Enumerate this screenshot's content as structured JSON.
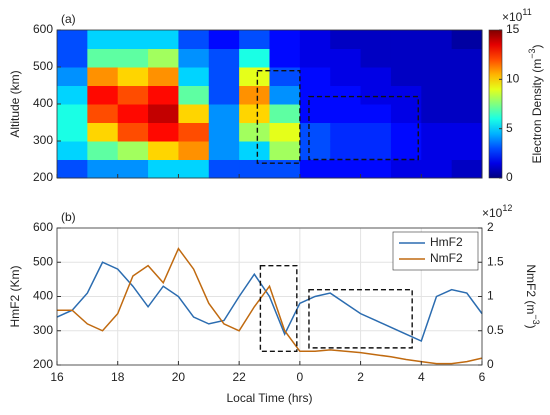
{
  "chart_data": [
    {
      "type": "heatmap",
      "panel_label": "(a)",
      "ylabel": "Altitude (km)",
      "colorbar_label": [
        "Electron Density (m",
        "−3",
        ")"
      ],
      "colorbar_multiplier": [
        "×10",
        "11"
      ],
      "x_edges": [
        16,
        17,
        18,
        19,
        20,
        21,
        22,
        23,
        24,
        25,
        26,
        27,
        28,
        29,
        30
      ],
      "y_edges": [
        200,
        250,
        300,
        350,
        400,
        450,
        500,
        550,
        600
      ],
      "z": [
        [
          3,
          5,
          6,
          6,
          5,
          4,
          3,
          3
        ],
        [
          4,
          7,
          10,
          12,
          13,
          11,
          7,
          5
        ],
        [
          4,
          8,
          12,
          13,
          12,
          10,
          7,
          5
        ],
        [
          5,
          10,
          13,
          14,
          13,
          11,
          8,
          5
        ],
        [
          5,
          11,
          12,
          10,
          7,
          5,
          4,
          3
        ],
        [
          3,
          4,
          4,
          4,
          3,
          3,
          3,
          2
        ],
        [
          3,
          5,
          8,
          10,
          11,
          9,
          6,
          3
        ],
        [
          3,
          8,
          9,
          7,
          4,
          3,
          2,
          2
        ],
        [
          2,
          3,
          3,
          2,
          2,
          2,
          1.5,
          1.5
        ],
        [
          2,
          2.5,
          2.5,
          2,
          2,
          1.5,
          1.5,
          1
        ],
        [
          2,
          2.5,
          2.5,
          2,
          1.5,
          1.5,
          1,
          1
        ],
        [
          1.5,
          2,
          2,
          1.5,
          1.5,
          1,
          1,
          1
        ],
        [
          1.5,
          1.5,
          1.5,
          1,
          1,
          1,
          1,
          1
        ],
        [
          1,
          1.5,
          1.5,
          1,
          1,
          1,
          1,
          0.5
        ]
      ],
      "colormap": "jet",
      "clim": [
        0,
        15
      ],
      "cticks": [
        0,
        5,
        10,
        15
      ],
      "xlim": [
        16,
        30
      ],
      "xticks": [
        16,
        18,
        20,
        22,
        24,
        26,
        28,
        30
      ],
      "ylim": [
        200,
        600
      ],
      "yticks": [
        200,
        300,
        400,
        500,
        600
      ],
      "highlight_boxes": [
        {
          "x": [
            22.6,
            24.0
          ],
          "y": [
            240,
            490
          ]
        },
        {
          "x": [
            24.3,
            27.9
          ],
          "y": [
            250,
            420
          ]
        }
      ]
    },
    {
      "type": "line",
      "panel_label": "(b)",
      "ylabel": "HmF2 (Km)",
      "xlabel": "Local Time (hrs)",
      "y2label": [
        "NmF2 (m",
        "−3",
        ")"
      ],
      "y2_multiplier": [
        "×10",
        "12"
      ],
      "x": [
        16,
        16.5,
        17,
        17.5,
        18,
        18.5,
        19,
        19.5,
        20,
        20.5,
        21,
        21.5,
        22,
        22.5,
        23,
        23.5,
        24,
        24.5,
        25,
        25.5,
        26,
        26.5,
        27,
        27.5,
        28,
        28.5,
        29,
        29.5,
        30
      ],
      "series": [
        {
          "name": "HmF2",
          "color": "#2b6cb0",
          "values": [
            340,
            360,
            410,
            500,
            480,
            430,
            370,
            430,
            400,
            340,
            320,
            330,
            400,
            465,
            400,
            290,
            380,
            400,
            410,
            380,
            350,
            330,
            310,
            290,
            270,
            400,
            420,
            410,
            350
          ]
        },
        {
          "name": "NmF2",
          "color": "#c06a10",
          "axis": "y2",
          "values": [
            0.8,
            0.8,
            0.6,
            0.5,
            0.75,
            1.3,
            1.45,
            1.2,
            1.7,
            1.4,
            0.9,
            0.6,
            0.5,
            0.85,
            1.15,
            0.5,
            0.2,
            0.2,
            0.22,
            0.2,
            0.18,
            0.15,
            0.12,
            0.08,
            0.05,
            0.02,
            0.02,
            0.05,
            0.1
          ]
        }
      ],
      "xlim": [
        16,
        30
      ],
      "xticks": [
        16,
        18,
        20,
        22,
        {
          "value": 24,
          "label": "0"
        },
        {
          "value": 26,
          "label": "2"
        },
        {
          "value": 28,
          "label": "4"
        },
        {
          "value": 30,
          "label": "6"
        }
      ],
      "ylim": [
        200,
        600
      ],
      "yticks": [
        200,
        300,
        400,
        500,
        600
      ],
      "y2lim": [
        0,
        2
      ],
      "y2ticks": [
        0,
        0.5,
        1,
        1.5,
        2
      ],
      "grid": true,
      "legend": "northeast",
      "highlight_boxes": [
        {
          "x": [
            22.7,
            23.9
          ],
          "y": [
            240,
            490
          ]
        },
        {
          "x": [
            24.3,
            27.7
          ],
          "y": [
            250,
            420
          ]
        }
      ]
    }
  ]
}
